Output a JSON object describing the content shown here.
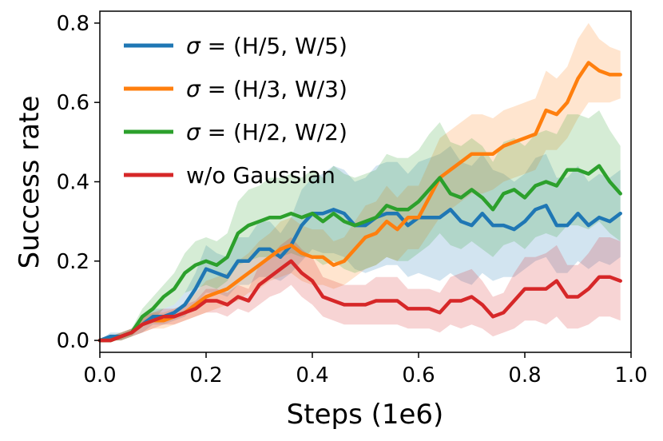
{
  "chart_data": {
    "type": "line",
    "xlabel": "Steps (1e6)",
    "ylabel": "Success rate",
    "xlim": [
      0.0,
      1.0
    ],
    "ylim": [
      -0.03,
      0.83
    ],
    "xticks": [
      0.0,
      0.2,
      0.4,
      0.6,
      0.8,
      1.0
    ],
    "xtick_labels": [
      "0.0",
      "0.2",
      "0.4",
      "0.6",
      "0.8",
      "1.0"
    ],
    "yticks": [
      0.0,
      0.2,
      0.4,
      0.6,
      0.8
    ],
    "ytick_labels": [
      "0.0",
      "0.2",
      "0.4",
      "0.6",
      "0.8"
    ],
    "grid": false,
    "legend_position": "top-left",
    "x": [
      0.0,
      0.02,
      0.04,
      0.06,
      0.08,
      0.1,
      0.12,
      0.14,
      0.16,
      0.18,
      0.2,
      0.22,
      0.24,
      0.26,
      0.28,
      0.3,
      0.32,
      0.34,
      0.36,
      0.38,
      0.4,
      0.42,
      0.44,
      0.46,
      0.48,
      0.5,
      0.52,
      0.54,
      0.56,
      0.58,
      0.6,
      0.62,
      0.64,
      0.66,
      0.68,
      0.7,
      0.72,
      0.74,
      0.76,
      0.78,
      0.8,
      0.82,
      0.84,
      0.86,
      0.88,
      0.9,
      0.92,
      0.94,
      0.96,
      0.98
    ],
    "series": [
      {
        "name": "σ = (H/5, W/5)",
        "color": "#1f77b4",
        "values": [
          0.0,
          0.01,
          0.01,
          0.02,
          0.04,
          0.06,
          0.06,
          0.07,
          0.09,
          0.13,
          0.18,
          0.17,
          0.16,
          0.2,
          0.2,
          0.23,
          0.23,
          0.21,
          0.24,
          0.29,
          0.32,
          0.32,
          0.33,
          0.32,
          0.29,
          0.29,
          0.31,
          0.32,
          0.32,
          0.29,
          0.31,
          0.31,
          0.31,
          0.33,
          0.3,
          0.29,
          0.32,
          0.29,
          0.29,
          0.28,
          0.3,
          0.33,
          0.34,
          0.29,
          0.29,
          0.32,
          0.29,
          0.31,
          0.3,
          0.32
        ],
        "lower": [
          0.0,
          0.0,
          0.0,
          0.01,
          0.02,
          0.04,
          0.04,
          0.05,
          0.06,
          0.09,
          0.12,
          0.12,
          0.11,
          0.14,
          0.14,
          0.16,
          0.16,
          0.15,
          0.17,
          0.2,
          0.23,
          0.22,
          0.22,
          0.21,
          0.18,
          0.17,
          0.18,
          0.19,
          0.19,
          0.16,
          0.17,
          0.16,
          0.15,
          0.17,
          0.15,
          0.14,
          0.17,
          0.15,
          0.16,
          0.16,
          0.18,
          0.2,
          0.21,
          0.17,
          0.17,
          0.2,
          0.18,
          0.2,
          0.19,
          0.21
        ],
        "upper": [
          0.0,
          0.02,
          0.02,
          0.03,
          0.06,
          0.08,
          0.08,
          0.09,
          0.12,
          0.17,
          0.24,
          0.22,
          0.21,
          0.26,
          0.26,
          0.3,
          0.3,
          0.27,
          0.31,
          0.38,
          0.41,
          0.42,
          0.44,
          0.43,
          0.4,
          0.41,
          0.44,
          0.45,
          0.45,
          0.42,
          0.45,
          0.46,
          0.47,
          0.49,
          0.45,
          0.44,
          0.47,
          0.43,
          0.42,
          0.4,
          0.42,
          0.46,
          0.47,
          0.41,
          0.41,
          0.44,
          0.4,
          0.42,
          0.41,
          0.43
        ]
      },
      {
        "name": "σ = (H/3, W/3)",
        "color": "#ff7f0e",
        "values": [
          0.0,
          0.0,
          0.01,
          0.02,
          0.04,
          0.05,
          0.05,
          0.06,
          0.07,
          0.09,
          0.11,
          0.12,
          0.13,
          0.15,
          0.17,
          0.19,
          0.21,
          0.23,
          0.24,
          0.22,
          0.21,
          0.21,
          0.19,
          0.2,
          0.23,
          0.26,
          0.27,
          0.3,
          0.28,
          0.31,
          0.31,
          0.36,
          0.41,
          0.43,
          0.45,
          0.47,
          0.47,
          0.47,
          0.49,
          0.5,
          0.51,
          0.52,
          0.58,
          0.57,
          0.6,
          0.66,
          0.7,
          0.68,
          0.67,
          0.67
        ],
        "lower": [
          0.0,
          0.0,
          0.0,
          0.01,
          0.02,
          0.03,
          0.03,
          0.04,
          0.05,
          0.06,
          0.07,
          0.08,
          0.09,
          0.1,
          0.12,
          0.13,
          0.15,
          0.16,
          0.17,
          0.15,
          0.14,
          0.14,
          0.13,
          0.14,
          0.16,
          0.18,
          0.19,
          0.21,
          0.2,
          0.23,
          0.23,
          0.27,
          0.31,
          0.33,
          0.35,
          0.37,
          0.37,
          0.38,
          0.4,
          0.41,
          0.42,
          0.43,
          0.48,
          0.48,
          0.51,
          0.56,
          0.6,
          0.6,
          0.6,
          0.61
        ],
        "upper": [
          0.0,
          0.01,
          0.02,
          0.03,
          0.06,
          0.07,
          0.07,
          0.08,
          0.09,
          0.12,
          0.15,
          0.16,
          0.17,
          0.2,
          0.22,
          0.25,
          0.27,
          0.3,
          0.31,
          0.29,
          0.28,
          0.28,
          0.25,
          0.26,
          0.3,
          0.34,
          0.35,
          0.39,
          0.36,
          0.39,
          0.39,
          0.45,
          0.51,
          0.53,
          0.55,
          0.57,
          0.57,
          0.56,
          0.58,
          0.59,
          0.6,
          0.61,
          0.68,
          0.66,
          0.69,
          0.76,
          0.8,
          0.76,
          0.74,
          0.73
        ]
      },
      {
        "name": "σ = (H/2, W/2)",
        "color": "#2ca02c",
        "values": [
          0.0,
          0.0,
          0.01,
          0.02,
          0.06,
          0.08,
          0.11,
          0.13,
          0.17,
          0.19,
          0.2,
          0.19,
          0.21,
          0.27,
          0.29,
          0.3,
          0.31,
          0.31,
          0.32,
          0.31,
          0.32,
          0.3,
          0.32,
          0.3,
          0.29,
          0.3,
          0.31,
          0.34,
          0.33,
          0.33,
          0.35,
          0.38,
          0.41,
          0.37,
          0.36,
          0.38,
          0.36,
          0.33,
          0.37,
          0.38,
          0.36,
          0.39,
          0.4,
          0.39,
          0.43,
          0.43,
          0.42,
          0.44,
          0.4,
          0.37
        ],
        "lower": [
          0.0,
          0.0,
          0.0,
          0.01,
          0.04,
          0.05,
          0.08,
          0.09,
          0.12,
          0.13,
          0.14,
          0.13,
          0.15,
          0.19,
          0.2,
          0.21,
          0.21,
          0.21,
          0.22,
          0.21,
          0.21,
          0.19,
          0.2,
          0.18,
          0.17,
          0.18,
          0.19,
          0.21,
          0.2,
          0.2,
          0.22,
          0.24,
          0.27,
          0.24,
          0.23,
          0.25,
          0.23,
          0.21,
          0.24,
          0.25,
          0.23,
          0.26,
          0.27,
          0.26,
          0.29,
          0.29,
          0.28,
          0.3,
          0.27,
          0.25
        ],
        "upper": [
          0.0,
          0.01,
          0.02,
          0.03,
          0.08,
          0.11,
          0.14,
          0.17,
          0.22,
          0.25,
          0.26,
          0.25,
          0.27,
          0.35,
          0.38,
          0.39,
          0.41,
          0.41,
          0.42,
          0.41,
          0.43,
          0.41,
          0.44,
          0.42,
          0.41,
          0.42,
          0.43,
          0.47,
          0.46,
          0.46,
          0.48,
          0.52,
          0.55,
          0.5,
          0.49,
          0.51,
          0.49,
          0.45,
          0.5,
          0.51,
          0.49,
          0.52,
          0.53,
          0.52,
          0.57,
          0.57,
          0.56,
          0.58,
          0.53,
          0.49
        ]
      },
      {
        "name": "w/o Gaussian",
        "color": "#d62728",
        "values": [
          0.0,
          0.0,
          0.01,
          0.02,
          0.04,
          0.05,
          0.06,
          0.06,
          0.07,
          0.08,
          0.1,
          0.1,
          0.09,
          0.11,
          0.1,
          0.14,
          0.16,
          0.18,
          0.2,
          0.17,
          0.15,
          0.11,
          0.1,
          0.09,
          0.09,
          0.09,
          0.1,
          0.1,
          0.1,
          0.08,
          0.08,
          0.08,
          0.07,
          0.1,
          0.1,
          0.11,
          0.09,
          0.06,
          0.07,
          0.1,
          0.13,
          0.13,
          0.13,
          0.15,
          0.11,
          0.11,
          0.13,
          0.16,
          0.16,
          0.15
        ],
        "lower": [
          0.0,
          0.0,
          0.0,
          0.01,
          0.02,
          0.03,
          0.04,
          0.04,
          0.05,
          0.06,
          0.07,
          0.07,
          0.06,
          0.08,
          0.07,
          0.09,
          0.11,
          0.12,
          0.14,
          0.11,
          0.09,
          0.06,
          0.05,
          0.04,
          0.04,
          0.04,
          0.04,
          0.04,
          0.04,
          0.03,
          0.03,
          0.03,
          0.02,
          0.04,
          0.03,
          0.04,
          0.03,
          0.01,
          0.02,
          0.03,
          0.05,
          0.05,
          0.04,
          0.06,
          0.03,
          0.03,
          0.04,
          0.06,
          0.06,
          0.05
        ],
        "upper": [
          0.0,
          0.01,
          0.02,
          0.03,
          0.06,
          0.07,
          0.08,
          0.08,
          0.09,
          0.1,
          0.13,
          0.13,
          0.12,
          0.14,
          0.13,
          0.19,
          0.21,
          0.24,
          0.26,
          0.23,
          0.21,
          0.16,
          0.15,
          0.14,
          0.14,
          0.14,
          0.16,
          0.16,
          0.16,
          0.13,
          0.13,
          0.13,
          0.12,
          0.16,
          0.17,
          0.18,
          0.15,
          0.11,
          0.12,
          0.17,
          0.21,
          0.21,
          0.22,
          0.24,
          0.19,
          0.19,
          0.22,
          0.26,
          0.26,
          0.25
        ]
      }
    ]
  }
}
